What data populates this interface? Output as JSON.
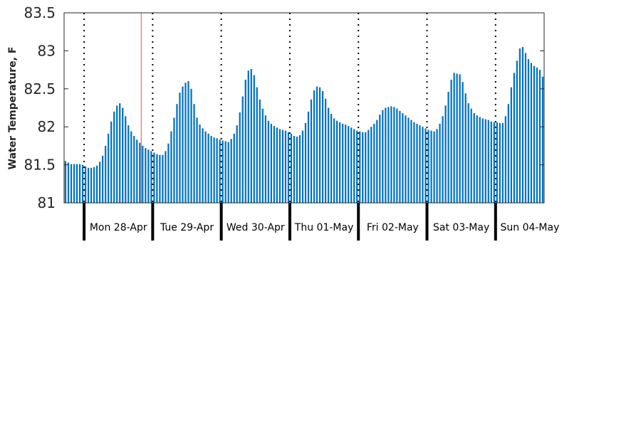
{
  "chart_data": {
    "type": "bar",
    "title": "",
    "xlabel": "",
    "ylabel": "Water Temperature, F",
    "ylim": [
      81,
      83.5
    ],
    "yticks": [
      "81",
      "81.5",
      "82",
      "82.5",
      "83",
      "83.5"
    ],
    "grid": false,
    "bar_color": "#0072bd",
    "current_time_marker_color": "#ff6666",
    "current_time_marker_after_sample": 27,
    "samples_per_day": 24,
    "start_day_boundary_after_sample": 7,
    "days": [
      "Mon 28-Apr",
      "Tue 29-Apr",
      "Wed 30-Apr",
      "Thu 01-May",
      "Fri 02-May",
      "Sat 03-May",
      "Sun 04-May"
    ],
    "values": [
      81.55,
      81.53,
      81.51,
      81.51,
      81.51,
      81.51,
      81.5,
      81.48,
      81.46,
      81.46,
      81.47,
      81.49,
      81.54,
      81.62,
      81.75,
      81.91,
      82.07,
      82.2,
      82.28,
      82.31,
      82.25,
      82.14,
      82.02,
      81.94,
      81.88,
      81.83,
      81.79,
      81.75,
      81.72,
      81.7,
      81.68,
      81.66,
      81.64,
      81.63,
      81.63,
      81.68,
      81.78,
      81.94,
      82.12,
      82.3,
      82.45,
      82.53,
      82.58,
      82.6,
      82.5,
      82.3,
      82.12,
      82.03,
      81.98,
      81.94,
      81.91,
      81.88,
      81.86,
      81.85,
      81.83,
      81.82,
      81.81,
      81.8,
      81.84,
      81.91,
      82.02,
      82.19,
      82.4,
      82.62,
      82.74,
      82.76,
      82.68,
      82.52,
      82.36,
      82.24,
      82.15,
      82.08,
      82.04,
      82.01,
      81.99,
      81.97,
      81.96,
      81.95,
      81.93,
      81.91,
      81.88,
      81.87,
      81.89,
      81.95,
      82.05,
      82.2,
      82.36,
      82.48,
      82.53,
      82.52,
      82.47,
      82.37,
      82.25,
      82.17,
      82.11,
      82.08,
      82.06,
      82.04,
      82.03,
      82.01,
      81.99,
      81.97,
      81.95,
      81.94,
      81.93,
      81.93,
      81.96,
      82.0,
      82.04,
      82.09,
      82.16,
      82.22,
      82.25,
      82.26,
      82.27,
      82.26,
      82.24,
      82.21,
      82.18,
      82.15,
      82.12,
      82.09,
      82.06,
      82.04,
      82.02,
      82.0,
      81.98,
      81.96,
      81.95,
      81.94,
      81.97,
      82.04,
      82.14,
      82.28,
      82.46,
      82.62,
      82.71,
      82.7,
      82.69,
      82.59,
      82.44,
      82.31,
      82.24,
      82.18,
      82.15,
      82.13,
      82.11,
      82.1,
      82.09,
      82.07,
      82.06,
      82.06,
      82.05,
      82.05,
      82.14,
      82.3,
      82.52,
      82.71,
      82.87,
      83.03,
      83.05,
      82.97,
      82.89,
      82.84,
      82.8,
      82.78,
      82.75,
      82.66
    ]
  }
}
